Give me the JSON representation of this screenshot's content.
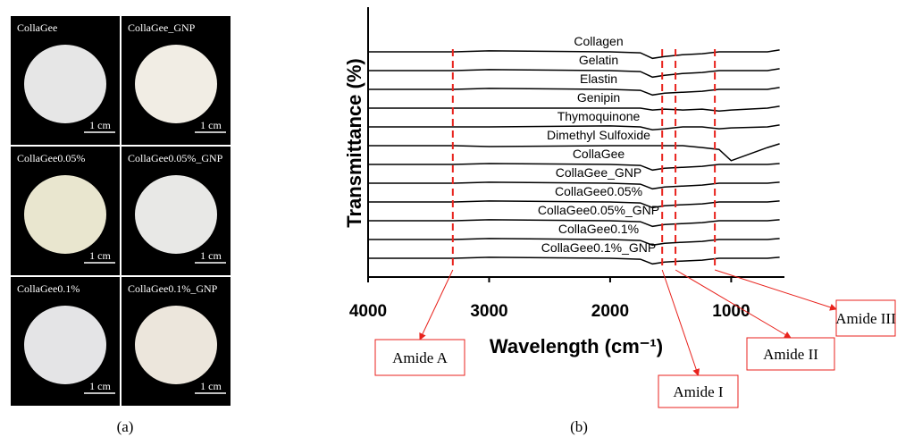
{
  "panel_a": {
    "tiles": [
      {
        "label": "CollaGee",
        "scale": "1 cm"
      },
      {
        "label": "CollaGee_GNP",
        "scale": "1 cm"
      },
      {
        "label": "CollaGee0.05%",
        "scale": "1 cm"
      },
      {
        "label": "CollaGee0.05%_GNP",
        "scale": "1 cm"
      },
      {
        "label": "CollaGee0.1%",
        "scale": "1 cm"
      },
      {
        "label": "CollaGee0.1%_GNP",
        "scale": "1 cm"
      }
    ],
    "caption": "(a)"
  },
  "chart_data": {
    "type": "line",
    "caption": "(b)",
    "x_label": "Wavelength (cm⁻¹)",
    "y_label": "Transmittance (%)",
    "xlim": [
      4000,
      560
    ],
    "xticks": [
      4000,
      3000,
      2000,
      1000
    ],
    "ylim": [
      0,
      14
    ],
    "line_color": "#000000",
    "x": [
      4000,
      3300,
      3000,
      2000,
      1750,
      1650,
      1550,
      1400,
      1240,
      1100,
      1000,
      700,
      600
    ],
    "series": [
      {
        "name": "Collagen",
        "values": [
          12,
          12,
          12.05,
          12,
          11.95,
          11.65,
          11.75,
          11.85,
          11.9,
          12,
          12,
          12,
          12.1
        ]
      },
      {
        "name": "Gelatin",
        "values": [
          11,
          11,
          11.05,
          11,
          10.95,
          10.65,
          10.75,
          10.85,
          10.9,
          11,
          11,
          11,
          11.1
        ]
      },
      {
        "name": "Elastin",
        "values": [
          10,
          10,
          10.05,
          10,
          9.95,
          9.7,
          9.8,
          9.85,
          9.9,
          10,
          10,
          10,
          10.1
        ]
      },
      {
        "name": "Genipin",
        "values": [
          9,
          9,
          9,
          9,
          9,
          8.9,
          8.95,
          8.9,
          8.95,
          8.85,
          8.9,
          9,
          9.1
        ]
      },
      {
        "name": "Thymoquinone",
        "values": [
          8,
          8,
          8,
          8.05,
          8,
          7.85,
          7.9,
          8,
          8,
          7.9,
          7.95,
          8,
          8.1
        ]
      },
      {
        "name": "Dimethyl Sulfoxide",
        "values": [
          7,
          7,
          6.95,
          7,
          7,
          7,
          7,
          7,
          6.9,
          6.8,
          6.2,
          6.9,
          7.1
        ]
      },
      {
        "name": "CollaGee",
        "values": [
          6,
          6,
          6.05,
          6,
          5.95,
          5.7,
          5.8,
          5.85,
          5.9,
          6,
          6,
          6,
          6.05
        ]
      },
      {
        "name": "CollaGee_GNP",
        "values": [
          5,
          5,
          5.05,
          5,
          4.95,
          4.7,
          4.8,
          4.85,
          4.9,
          5,
          5,
          5,
          5.05
        ]
      },
      {
        "name": "CollaGee0.05%",
        "values": [
          4,
          4,
          4.05,
          4,
          3.95,
          3.7,
          3.8,
          3.85,
          3.9,
          4,
          4,
          4,
          4.05
        ]
      },
      {
        "name": "CollaGee0.05%_GNP",
        "values": [
          3,
          3,
          3.05,
          3,
          2.95,
          2.7,
          2.8,
          2.85,
          2.9,
          3,
          3,
          3,
          3.05
        ]
      },
      {
        "name": "CollaGee0.1%",
        "values": [
          2,
          2,
          2.05,
          2,
          1.95,
          1.7,
          1.8,
          1.85,
          1.9,
          2,
          2,
          2,
          2.05
        ]
      },
      {
        "name": "CollaGee0.1%_GNP",
        "values": [
          1,
          1,
          1.05,
          1,
          0.95,
          0.7,
          0.8,
          0.85,
          0.9,
          1,
          1,
          1,
          1.05
        ]
      }
    ],
    "annotations": [
      {
        "label": "Amide A",
        "x": 3300
      },
      {
        "label": "Amide I",
        "x": 1570
      },
      {
        "label": "Amide II",
        "x": 1460
      },
      {
        "label": "Amide III",
        "x": 1135
      }
    ],
    "annotation_color": "#e8221c"
  }
}
